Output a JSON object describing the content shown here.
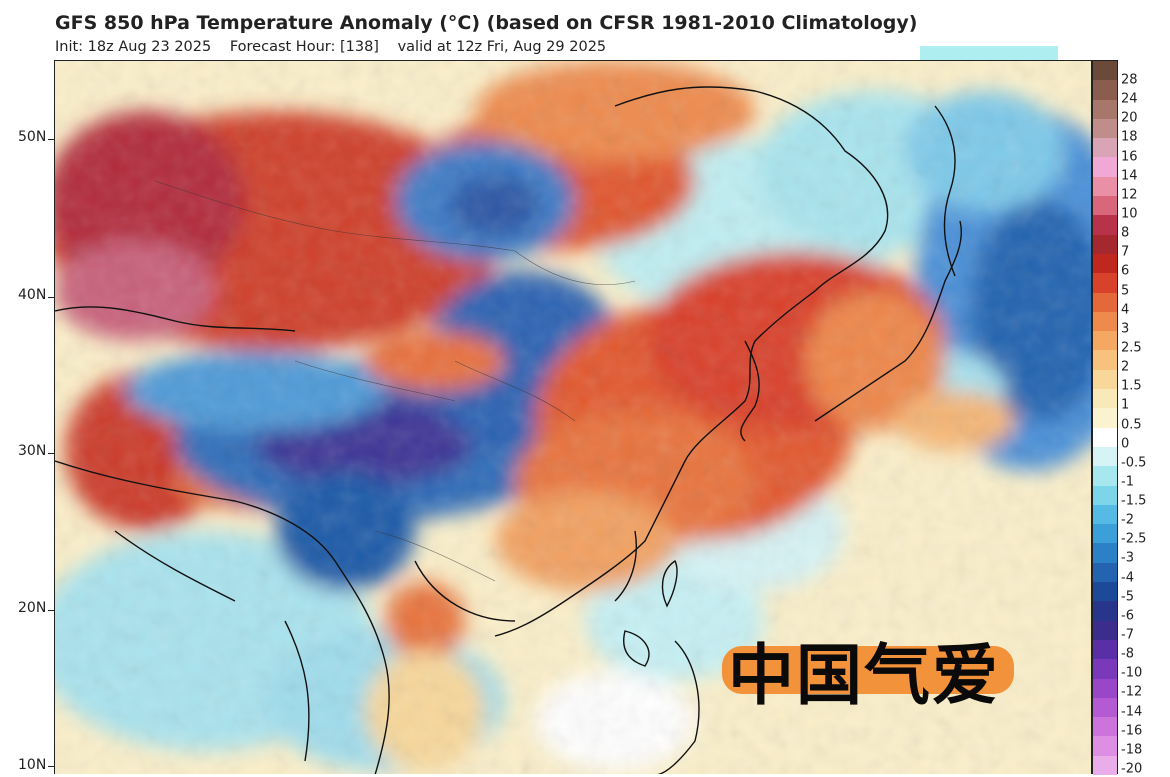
{
  "header": {
    "title": "GFS 850 hPa Temperature Anomaly (°C) (based on CFSR 1981-2010 Climatology)",
    "init": "Init: 18z Aug 23 2025",
    "forecast_hour": "Forecast Hour: [138]",
    "valid": "valid at 12z Fri, Aug 29 2025"
  },
  "map": {
    "lat_labels": [
      "50N",
      "40N",
      "30N",
      "20N",
      "10N"
    ]
  },
  "colorbar": {
    "labels": [
      "28",
      "24",
      "20",
      "18",
      "16",
      "14",
      "12",
      "10",
      "8",
      "7",
      "6",
      "5",
      "4",
      "3",
      "2.5",
      "2",
      "1.5",
      "1",
      "0.5",
      "0",
      "-0.5",
      "-1",
      "-1.5",
      "-2",
      "-2.5",
      "-3",
      "-4",
      "-5",
      "-6",
      "-7",
      "-8",
      "-10",
      "-12",
      "-14",
      "-16",
      "-18",
      "-20"
    ],
    "colors": [
      "#6b4a3a",
      "#8a5d4f",
      "#a8776c",
      "#c08d8a",
      "#d9a4b6",
      "#f0a9d4",
      "#e98fa6",
      "#d8677c",
      "#b8324a",
      "#a5282f",
      "#c0271f",
      "#d8422a",
      "#e5683a",
      "#ef8a4d",
      "#f4a862",
      "#f7c27d",
      "#f8d79a",
      "#fae9b8",
      "#fbf2cf",
      "#ffffff",
      "#d6f3f5",
      "#a7e8ee",
      "#7dd5ea",
      "#55bbe4",
      "#3ca0d8",
      "#2b80c6",
      "#2363b0",
      "#1c4a98",
      "#27358a",
      "#3c2c8c",
      "#5a2ea6",
      "#7a38bb",
      "#9847c9",
      "#b45bd4",
      "#cd73dc",
      "#dd90e3",
      "#e9aee9"
    ]
  },
  "watermark": {
    "text": "中国气爱"
  },
  "palette": {
    "warm": "#d8422a",
    "cool": "#2363b0",
    "neutral": "#fbf2cf"
  }
}
